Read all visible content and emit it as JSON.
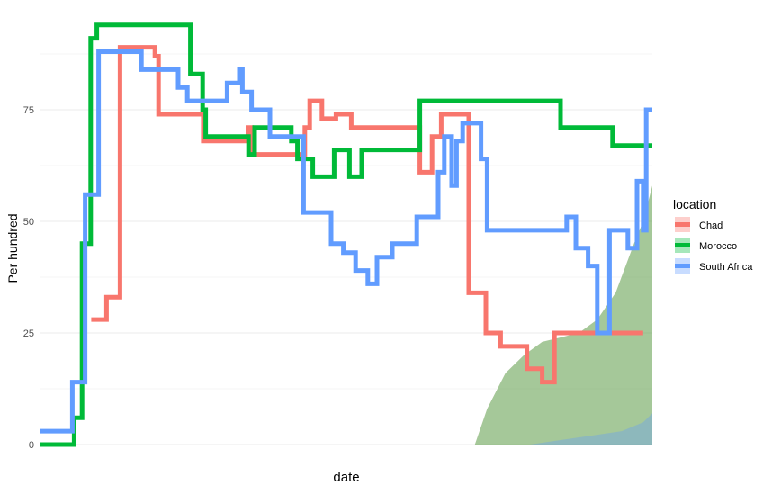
{
  "chart_data": {
    "type": "line",
    "title": "",
    "xlabel": "date",
    "ylabel": "Per hundred",
    "ylim": [
      0,
      95
    ],
    "yticks": [
      0,
      25,
      50,
      75
    ],
    "grid": true,
    "legend": {
      "title": "location",
      "placement": "right"
    },
    "x_note": "date axis has no printed tick labels; x given as fraction of the plotted date span",
    "series": [
      {
        "name": "Chad",
        "color": "#F8766D",
        "line": [
          [
            0.083,
            28
          ],
          [
            0.108,
            28
          ],
          [
            0.108,
            33
          ],
          [
            0.13,
            33
          ],
          [
            0.13,
            89
          ],
          [
            0.187,
            89
          ],
          [
            0.187,
            87
          ],
          [
            0.193,
            87
          ],
          [
            0.193,
            74
          ],
          [
            0.266,
            74
          ],
          [
            0.266,
            68
          ],
          [
            0.339,
            68
          ],
          [
            0.339,
            71
          ],
          [
            0.345,
            71
          ],
          [
            0.345,
            65
          ],
          [
            0.432,
            65
          ],
          [
            0.432,
            71
          ],
          [
            0.44,
            71
          ],
          [
            0.44,
            77
          ],
          [
            0.46,
            77
          ],
          [
            0.46,
            73
          ],
          [
            0.483,
            73
          ],
          [
            0.483,
            74
          ],
          [
            0.508,
            74
          ],
          [
            0.508,
            71
          ],
          [
            0.62,
            71
          ],
          [
            0.62,
            61
          ],
          [
            0.64,
            61
          ],
          [
            0.64,
            69
          ],
          [
            0.655,
            69
          ],
          [
            0.655,
            74
          ],
          [
            0.7,
            74
          ],
          [
            0.7,
            34
          ],
          [
            0.728,
            34
          ],
          [
            0.728,
            25
          ],
          [
            0.752,
            25
          ],
          [
            0.752,
            22
          ],
          [
            0.795,
            22
          ],
          [
            0.795,
            17
          ],
          [
            0.82,
            17
          ],
          [
            0.82,
            14
          ],
          [
            0.84,
            14
          ],
          [
            0.84,
            25
          ],
          [
            0.985,
            25
          ]
        ],
        "area": [
          [
            0.71,
            0
          ],
          [
            0.73,
            8
          ],
          [
            0.76,
            16
          ],
          [
            0.79,
            20
          ],
          [
            0.82,
            23
          ],
          [
            0.85,
            24
          ],
          [
            0.88,
            25
          ],
          [
            0.91,
            28
          ],
          [
            0.94,
            34
          ],
          [
            0.97,
            45
          ],
          [
            0.985,
            50
          ],
          [
            1.0,
            58
          ]
        ]
      },
      {
        "name": "Morocco",
        "color": "#00BA38",
        "line": [
          [
            0.0,
            0
          ],
          [
            0.055,
            0
          ],
          [
            0.055,
            6
          ],
          [
            0.068,
            6
          ],
          [
            0.068,
            45
          ],
          [
            0.082,
            45
          ],
          [
            0.082,
            91
          ],
          [
            0.092,
            91
          ],
          [
            0.092,
            94
          ],
          [
            0.245,
            94
          ],
          [
            0.245,
            83
          ],
          [
            0.265,
            83
          ],
          [
            0.265,
            75
          ],
          [
            0.27,
            75
          ],
          [
            0.27,
            69
          ],
          [
            0.34,
            69
          ],
          [
            0.34,
            65
          ],
          [
            0.35,
            65
          ],
          [
            0.35,
            71
          ],
          [
            0.41,
            71
          ],
          [
            0.41,
            68
          ],
          [
            0.42,
            68
          ],
          [
            0.42,
            64
          ],
          [
            0.445,
            64
          ],
          [
            0.445,
            60
          ],
          [
            0.48,
            60
          ],
          [
            0.48,
            66
          ],
          [
            0.505,
            66
          ],
          [
            0.505,
            60
          ],
          [
            0.525,
            60
          ],
          [
            0.525,
            66
          ],
          [
            0.62,
            66
          ],
          [
            0.62,
            77
          ],
          [
            0.85,
            77
          ],
          [
            0.85,
            71
          ],
          [
            0.935,
            71
          ],
          [
            0.935,
            67
          ],
          [
            1.0,
            67
          ]
        ],
        "area": [
          [
            0.71,
            0
          ],
          [
            0.73,
            8
          ],
          [
            0.76,
            16
          ],
          [
            0.79,
            20
          ],
          [
            0.82,
            23
          ],
          [
            0.85,
            24
          ],
          [
            0.88,
            25
          ],
          [
            0.91,
            28
          ],
          [
            0.94,
            34
          ],
          [
            0.97,
            45
          ],
          [
            0.985,
            50
          ],
          [
            1.0,
            58
          ]
        ]
      },
      {
        "name": "South Africa",
        "color": "#619CFF",
        "line": [
          [
            0.0,
            3
          ],
          [
            0.052,
            3
          ],
          [
            0.052,
            14
          ],
          [
            0.073,
            14
          ],
          [
            0.073,
            56
          ],
          [
            0.095,
            56
          ],
          [
            0.095,
            88
          ],
          [
            0.165,
            88
          ],
          [
            0.165,
            84
          ],
          [
            0.225,
            84
          ],
          [
            0.225,
            80
          ],
          [
            0.24,
            80
          ],
          [
            0.24,
            77
          ],
          [
            0.305,
            77
          ],
          [
            0.305,
            81
          ],
          [
            0.325,
            81
          ],
          [
            0.325,
            84
          ],
          [
            0.33,
            84
          ],
          [
            0.33,
            79
          ],
          [
            0.345,
            79
          ],
          [
            0.345,
            75
          ],
          [
            0.375,
            75
          ],
          [
            0.375,
            69
          ],
          [
            0.43,
            69
          ],
          [
            0.43,
            52
          ],
          [
            0.475,
            52
          ],
          [
            0.475,
            45
          ],
          [
            0.495,
            45
          ],
          [
            0.495,
            43
          ],
          [
            0.515,
            43
          ],
          [
            0.515,
            39
          ],
          [
            0.535,
            39
          ],
          [
            0.535,
            36
          ],
          [
            0.55,
            36
          ],
          [
            0.55,
            42
          ],
          [
            0.575,
            42
          ],
          [
            0.575,
            45
          ],
          [
            0.615,
            45
          ],
          [
            0.615,
            51
          ],
          [
            0.65,
            51
          ],
          [
            0.65,
            61
          ],
          [
            0.66,
            61
          ],
          [
            0.66,
            69
          ],
          [
            0.672,
            69
          ],
          [
            0.672,
            58
          ],
          [
            0.68,
            58
          ],
          [
            0.68,
            68
          ],
          [
            0.69,
            68
          ],
          [
            0.69,
            72
          ],
          [
            0.72,
            72
          ],
          [
            0.72,
            64
          ],
          [
            0.73,
            64
          ],
          [
            0.73,
            48
          ],
          [
            0.86,
            48
          ],
          [
            0.86,
            51
          ],
          [
            0.875,
            51
          ],
          [
            0.875,
            44
          ],
          [
            0.895,
            44
          ],
          [
            0.895,
            40
          ],
          [
            0.91,
            40
          ],
          [
            0.91,
            25
          ],
          [
            0.93,
            25
          ],
          [
            0.93,
            48
          ],
          [
            0.96,
            48
          ],
          [
            0.96,
            44
          ],
          [
            0.975,
            44
          ],
          [
            0.975,
            59
          ],
          [
            0.985,
            59
          ]
        ],
        "line_end_segment": [
          [
            0.985,
            59
          ],
          [
            0.985,
            48
          ],
          [
            0.99,
            48
          ],
          [
            0.99,
            75
          ],
          [
            1.0,
            75
          ]
        ],
        "area": [
          [
            0.7,
            0
          ],
          [
            0.76,
            0
          ],
          [
            0.8,
            0
          ],
          [
            0.85,
            1
          ],
          [
            0.9,
            2
          ],
          [
            0.95,
            3
          ],
          [
            0.985,
            5
          ],
          [
            1.0,
            7
          ]
        ]
      }
    ]
  }
}
